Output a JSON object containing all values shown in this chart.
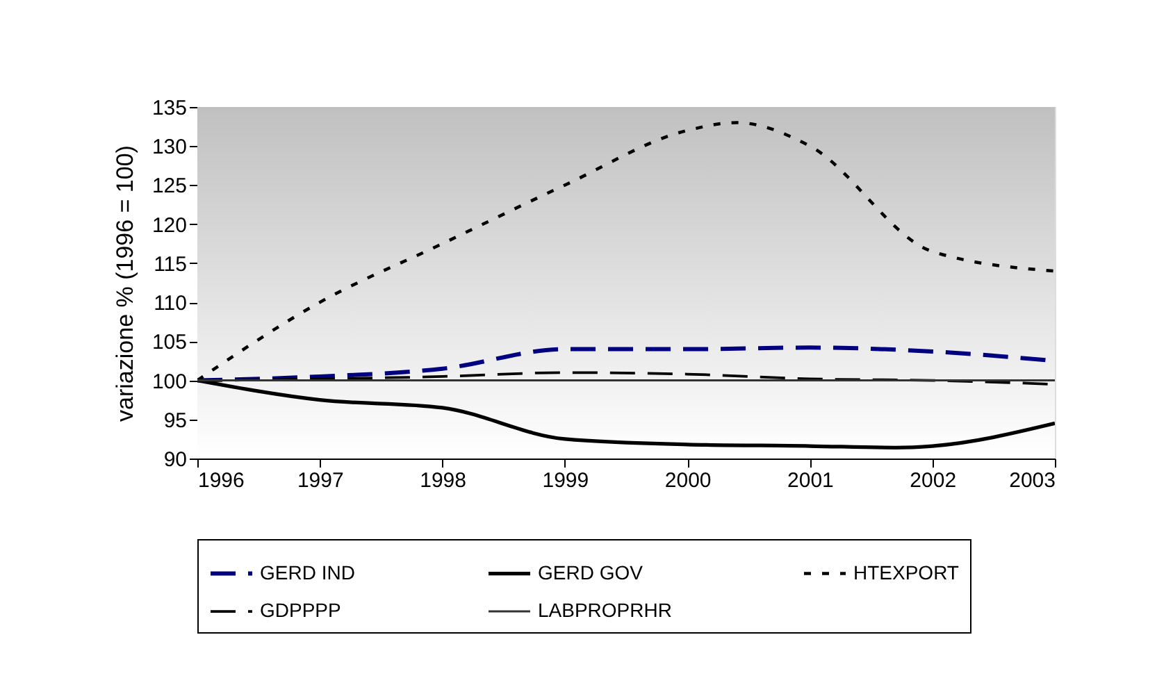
{
  "chart_data": {
    "type": "line",
    "ylabel": "variazione % (1996 = 100)",
    "xlim": [
      1996,
      2003
    ],
    "xticks": [
      1996,
      1997,
      1998,
      1999,
      2000,
      2001,
      2002,
      2003
    ],
    "ylim": [
      90,
      135
    ],
    "yticks": [
      90,
      95,
      100,
      105,
      110,
      115,
      120,
      125,
      130,
      135
    ],
    "legend": "bottom",
    "series": [
      {
        "name": "GERD IND",
        "color": "#000080",
        "line_style": "dashed",
        "x": [
          1996,
          1997,
          1998,
          1999,
          2000,
          2001,
          2002,
          2003
        ],
        "values": [
          100,
          100.5,
          101.5,
          104,
          104,
          104.2,
          103.7,
          102.5
        ]
      },
      {
        "name": "GERD GOV",
        "color": "#000000",
        "line_style": "solid",
        "x": [
          1996,
          1997,
          1998,
          1999,
          2000,
          2001,
          2001.7,
          2002,
          2003
        ],
        "values": [
          100,
          97.5,
          96.5,
          92.5,
          91.8,
          91.6,
          91.4,
          91.6,
          94.5
        ]
      },
      {
        "name": "HTEXPORT",
        "color": "#000000",
        "line_style": "dotted",
        "x": [
          1996,
          1997,
          1998,
          1999,
          2000,
          2000.4,
          2001,
          2002,
          2003
        ],
        "values": [
          100,
          110,
          117.5,
          125,
          132,
          133,
          130,
          116.5,
          114
        ]
      },
      {
        "name": "GDPPPP",
        "color": "#000000",
        "line_style": "dashed",
        "x": [
          1996,
          1997,
          1998,
          1999,
          2000,
          2001,
          2002,
          2003
        ],
        "values": [
          100,
          100.2,
          100.5,
          101,
          100.8,
          100.2,
          100,
          99.5
        ]
      },
      {
        "name": "LABPROPRHR",
        "color": "#333333",
        "line_style": "solid",
        "x": [
          1996,
          1997,
          1998,
          1999,
          2000,
          2001,
          2002,
          2003
        ],
        "values": [
          100,
          100,
          100,
          100,
          100,
          100,
          100,
          100
        ]
      }
    ]
  }
}
